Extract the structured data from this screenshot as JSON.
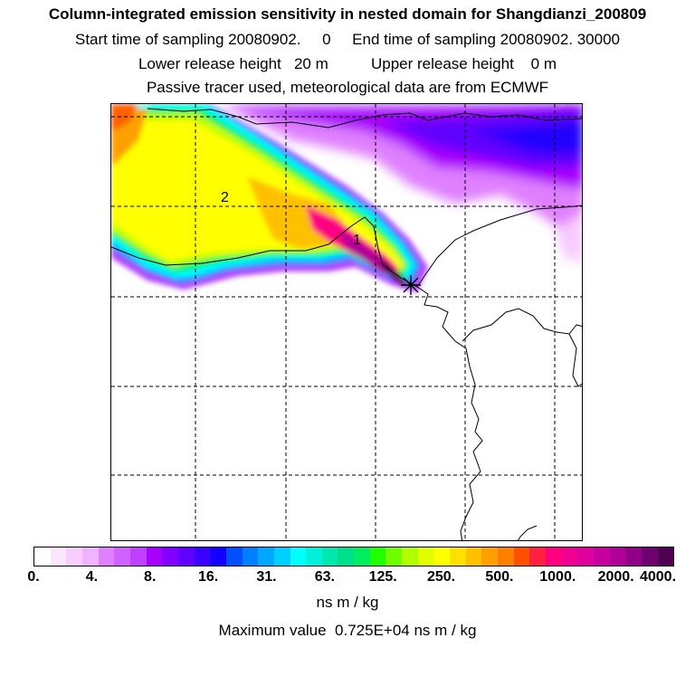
{
  "title": "Column-integrated emission sensitivity in nested domain for Shangdianzi_200809",
  "sampling_line": "Start time of sampling 20080902.     0     End time of sampling 20080902. 30000",
  "release_line": "Lower release height   20 m          Upper release height    0 m",
  "tracer_line": "Passive tracer used, meteorological data are from ECMWF",
  "map": {
    "labels": [
      "1",
      "2"
    ],
    "receptor_symbol": "star",
    "plume_axis_colors": {
      "edge": "#8000ff",
      "low": "#00ffff",
      "mid": "#ffff00",
      "high": "#ff0080",
      "peak": "#300030"
    }
  },
  "colorbar": {
    "tick_labels": [
      "0.",
      "4.",
      "8.",
      "16.",
      "31.",
      "63.",
      "125.",
      "250.",
      "500.",
      "1000.",
      "2000.",
      "4000."
    ],
    "colors": [
      "#ffffff",
      "#fce6ff",
      "#f7ccff",
      "#f0b3ff",
      "#e080ff",
      "#d060ff",
      "#c040ff",
      "#a800ff",
      "#8000ff",
      "#6000ff",
      "#3c00ff",
      "#1400ff",
      "#0050ff",
      "#0080ff",
      "#00a8ff",
      "#00d0ff",
      "#00ffff",
      "#00f0d8",
      "#00e8b0",
      "#00e088",
      "#00ee60",
      "#20ff00",
      "#70ff00",
      "#b0ff00",
      "#e0ff00",
      "#ffff00",
      "#ffe000",
      "#ffc000",
      "#ffa000",
      "#ff8000",
      "#ff5000",
      "#ff2040",
      "#ff0080",
      "#f00090",
      "#e0009c",
      "#c800a0",
      "#b00098",
      "#900088",
      "#700070",
      "#500050"
    ]
  },
  "units": "ns m / kg",
  "max_value": "Maximum value  0.725E+04 ns m / kg"
}
